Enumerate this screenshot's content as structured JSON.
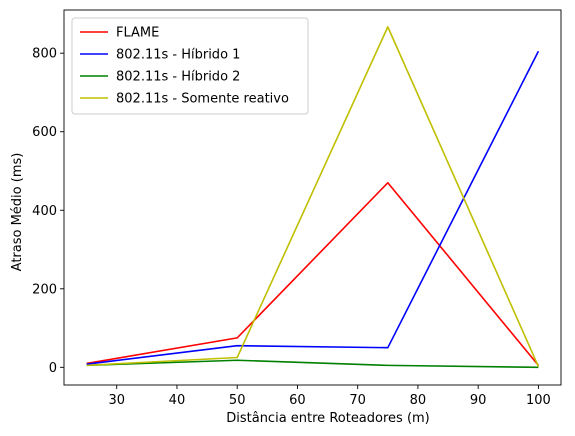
{
  "chart_data": {
    "type": "line",
    "title": "",
    "xlabel": "Distância entre Roteadores (m)",
    "ylabel": "Atraso Médio (ms)",
    "xlim": [
      21.25,
      103.75
    ],
    "ylim": [
      -45,
      910
    ],
    "xticks": [
      30,
      40,
      50,
      60,
      70,
      80,
      90,
      100
    ],
    "yticks": [
      0,
      200,
      400,
      600,
      800
    ],
    "grid": false,
    "legend": "top-left",
    "x": [
      25,
      50,
      75,
      100
    ],
    "series": [
      {
        "name": "FLAME",
        "color": "#ff0000",
        "values": [
          10,
          75,
          470,
          5
        ]
      },
      {
        "name": "802.11s - Híbrido 1",
        "color": "#0000ff",
        "values": [
          8,
          55,
          50,
          805
        ]
      },
      {
        "name": "802.11s - Híbrido 2",
        "color": "#008000",
        "values": [
          5,
          18,
          5,
          0
        ]
      },
      {
        "name": "802.11s - Somente reativo",
        "color": "#bfbf00",
        "values": [
          5,
          25,
          867,
          2
        ]
      }
    ]
  }
}
